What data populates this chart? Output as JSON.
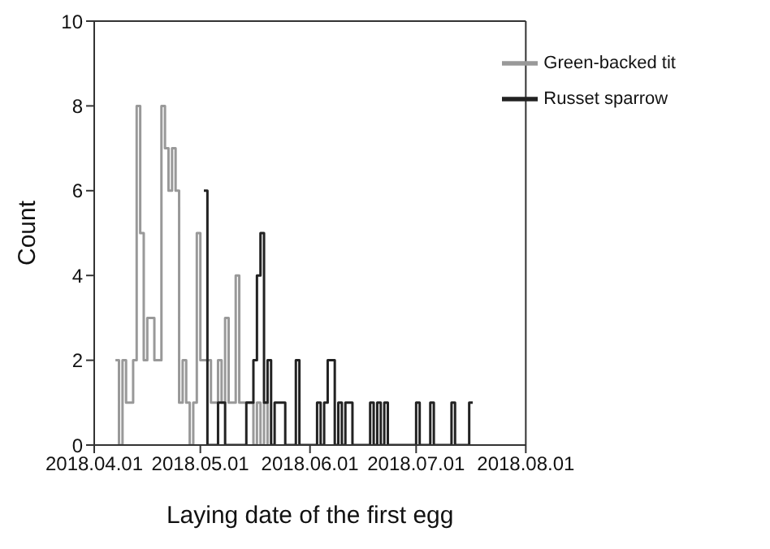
{
  "chart_data": {
    "type": "step",
    "xlabel": "Laying date of the first egg",
    "ylabel": "Count",
    "xlim": [
      "2018-04-01",
      "2018-08-01"
    ],
    "xticks": [
      {
        "value": "2018-04-01",
        "label": "2018.04.01"
      },
      {
        "value": "2018-05-01",
        "label": "2018.05.01"
      },
      {
        "value": "2018-06-01",
        "label": "2018.06.01"
      },
      {
        "value": "2018-07-01",
        "label": "2018.07.01"
      },
      {
        "value": "2018-08-01",
        "label": "2018.08.01"
      }
    ],
    "ylim": [
      0,
      10
    ],
    "yticks": [
      0,
      2,
      4,
      6,
      8,
      10
    ],
    "grid": false,
    "legend": "top right",
    "marker": "none",
    "line_style": "solid",
    "series": [
      {
        "name": "Green-backed tit",
        "color": "#999999",
        "x": [
          "2018-04-07",
          "2018-04-08",
          "2018-04-09",
          "2018-04-10",
          "2018-04-12",
          "2018-04-13",
          "2018-04-14",
          "2018-04-15",
          "2018-04-16",
          "2018-04-18",
          "2018-04-20",
          "2018-04-21",
          "2018-04-22",
          "2018-04-23",
          "2018-04-24",
          "2018-04-25",
          "2018-04-26",
          "2018-04-27",
          "2018-04-28",
          "2018-04-29",
          "2018-04-30",
          "2018-05-01",
          "2018-05-04",
          "2018-05-06",
          "2018-05-07",
          "2018-05-08",
          "2018-05-09",
          "2018-05-11",
          "2018-05-12",
          "2018-05-16",
          "2018-05-17",
          "2018-05-18",
          "2018-05-19",
          "2018-05-20"
        ],
        "values": [
          2,
          0,
          2,
          1,
          2,
          8,
          5,
          2,
          3,
          2,
          8,
          7,
          6,
          7,
          6,
          1,
          2,
          1,
          0,
          1,
          5,
          2,
          1,
          2,
          1,
          3,
          1,
          4,
          1,
          0,
          1,
          0,
          1,
          0
        ]
      },
      {
        "name": "Russet sparrow",
        "color": "#222222",
        "x": [
          "2018-05-02",
          "2018-05-03",
          "2018-05-06",
          "2018-05-08",
          "2018-05-14",
          "2018-05-16",
          "2018-05-17",
          "2018-05-18",
          "2018-05-19",
          "2018-05-20",
          "2018-05-21",
          "2018-05-22",
          "2018-05-25",
          "2018-05-28",
          "2018-05-29",
          "2018-06-03",
          "2018-06-04",
          "2018-06-05",
          "2018-06-06",
          "2018-06-08",
          "2018-06-09",
          "2018-06-10",
          "2018-06-11",
          "2018-06-13",
          "2018-06-18",
          "2018-06-19",
          "2018-06-20",
          "2018-06-21",
          "2018-06-22",
          "2018-06-23",
          "2018-07-01",
          "2018-07-02",
          "2018-07-05",
          "2018-07-06",
          "2018-07-11",
          "2018-07-12",
          "2018-07-16",
          "2018-07-17"
        ],
        "values": [
          6,
          0,
          1,
          0,
          1,
          2,
          4,
          5,
          1,
          2,
          0,
          1,
          0,
          2,
          0,
          1,
          0,
          1,
          2,
          0,
          1,
          0,
          1,
          0,
          1,
          0,
          1,
          0,
          1,
          0,
          1,
          0,
          1,
          0,
          1,
          0,
          1,
          1
        ]
      }
    ]
  }
}
